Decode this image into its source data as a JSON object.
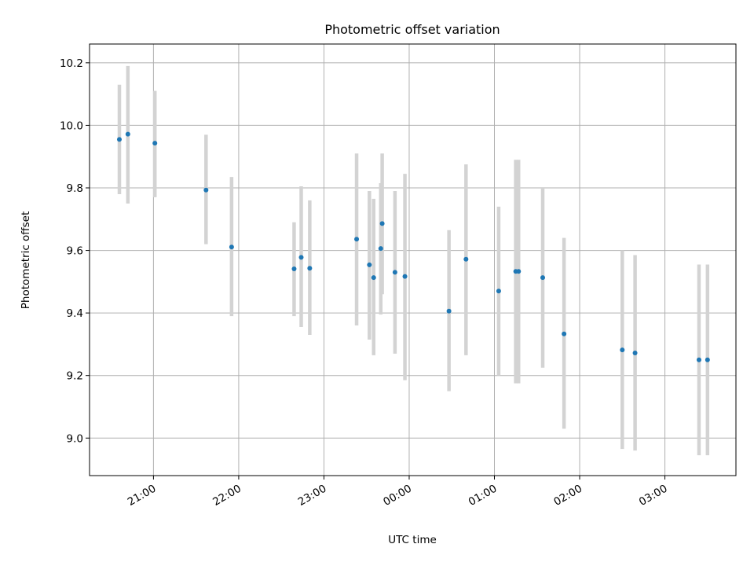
{
  "chart_data": {
    "type": "scatter",
    "title": "Photometric offset variation",
    "xlabel": "UTC time",
    "ylabel": "Photometric offset",
    "x_unit": "UTC clock time (HH:MM), night starting on the first day",
    "xlim": [
      "20:15",
      "03:50"
    ],
    "ylim": [
      8.88,
      10.26
    ],
    "x_ticks": [
      "21:00",
      "22:00",
      "23:00",
      "00:00",
      "01:00",
      "02:00",
      "03:00"
    ],
    "y_ticks": [
      9.0,
      9.2,
      9.4,
      9.6,
      9.8,
      10.0,
      10.2
    ],
    "grid": true,
    "marker_color": "#1f77b4",
    "errorbar_color": "#d3d3d3",
    "points": [
      {
        "x": "20:36",
        "y": 9.955,
        "lo": 9.78,
        "hi": 10.13
      },
      {
        "x": "20:42",
        "y": 9.972,
        "lo": 9.75,
        "hi": 10.19
      },
      {
        "x": "21:01",
        "y": 9.943,
        "lo": 9.77,
        "hi": 10.11
      },
      {
        "x": "21:37",
        "y": 9.793,
        "lo": 9.62,
        "hi": 9.97
      },
      {
        "x": "21:55",
        "y": 9.611,
        "lo": 9.39,
        "hi": 9.835
      },
      {
        "x": "22:39",
        "y": 9.541,
        "lo": 9.39,
        "hi": 9.69
      },
      {
        "x": "22:44",
        "y": 9.578,
        "lo": 9.355,
        "hi": 9.805
      },
      {
        "x": "22:50",
        "y": 9.543,
        "lo": 9.33,
        "hi": 9.76
      },
      {
        "x": "23:23",
        "y": 9.636,
        "lo": 9.36,
        "hi": 9.91
      },
      {
        "x": "23:32",
        "y": 9.554,
        "lo": 9.315,
        "hi": 9.79
      },
      {
        "x": "23:35",
        "y": 9.513,
        "lo": 9.265,
        "hi": 9.765
      },
      {
        "x": "23:40",
        "y": 9.606,
        "lo": 9.395,
        "hi": 9.815
      },
      {
        "x": "23:41",
        "y": 9.686,
        "lo": 9.46,
        "hi": 9.91
      },
      {
        "x": "23:50",
        "y": 9.53,
        "lo": 9.27,
        "hi": 9.79
      },
      {
        "x": "23:57",
        "y": 9.517,
        "lo": 9.185,
        "hi": 9.845
      },
      {
        "x": "00:28",
        "y": 9.406,
        "lo": 9.15,
        "hi": 9.665
      },
      {
        "x": "00:40",
        "y": 9.572,
        "lo": 9.265,
        "hi": 9.875
      },
      {
        "x": "01:03",
        "y": 9.47,
        "lo": 9.2,
        "hi": 9.74
      },
      {
        "x": "01:15",
        "y": 9.533,
        "lo": 9.175,
        "hi": 9.89
      },
      {
        "x": "01:17",
        "y": 9.533,
        "lo": 9.175,
        "hi": 9.89
      },
      {
        "x": "01:34",
        "y": 9.513,
        "lo": 9.225,
        "hi": 9.8
      },
      {
        "x": "01:49",
        "y": 9.333,
        "lo": 9.03,
        "hi": 9.64
      },
      {
        "x": "02:30",
        "y": 9.282,
        "lo": 8.965,
        "hi": 9.6
      },
      {
        "x": "02:39",
        "y": 9.272,
        "lo": 8.96,
        "hi": 9.585
      },
      {
        "x": "03:24",
        "y": 9.25,
        "lo": 8.945,
        "hi": 9.555
      },
      {
        "x": "03:30",
        "y": 9.25,
        "lo": 8.945,
        "hi": 9.555
      }
    ]
  }
}
